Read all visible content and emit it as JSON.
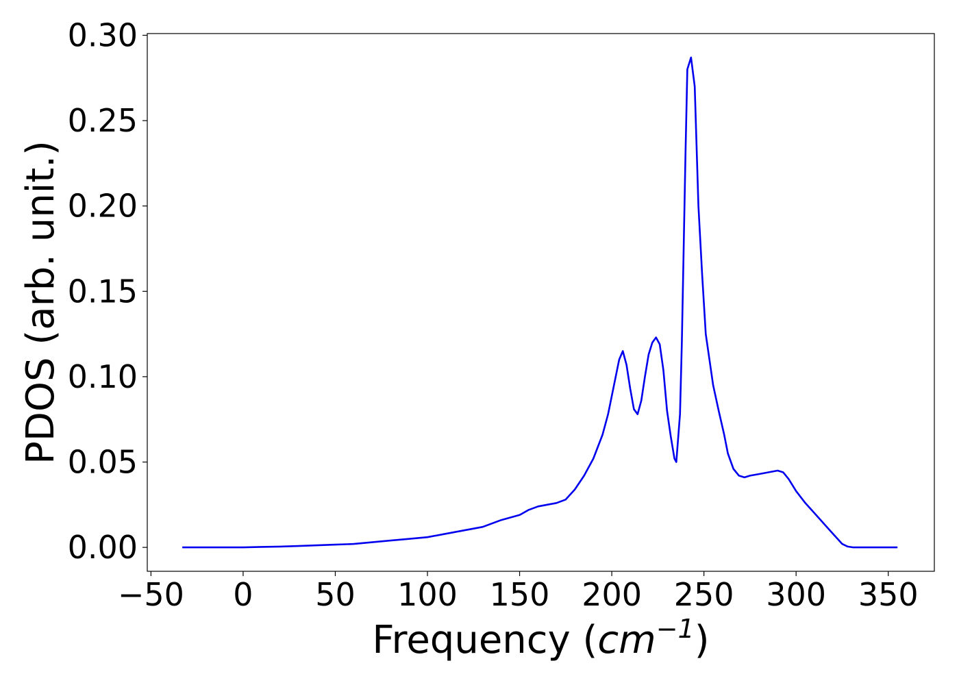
{
  "chart_data": {
    "type": "line",
    "title": "",
    "xlabel_prefix": "Frequency (",
    "xlabel_unit_base": "cm",
    "xlabel_unit_exponent": "−1",
    "xlabel_suffix": ")",
    "ylabel": "PDOS (arb. unit.)",
    "xlim": [
      -52,
      375
    ],
    "ylim": [
      -0.014,
      0.301
    ],
    "xticks": [
      -50,
      0,
      50,
      100,
      150,
      200,
      250,
      300,
      350
    ],
    "xtick_labels": [
      "−50",
      "0",
      "50",
      "100",
      "150",
      "200",
      "250",
      "300",
      "350"
    ],
    "yticks": [
      0.0,
      0.05,
      0.1,
      0.15,
      0.2,
      0.25,
      0.3
    ],
    "ytick_labels": [
      "0.00",
      "0.05",
      "0.10",
      "0.15",
      "0.20",
      "0.25",
      "0.30"
    ],
    "grid": false,
    "series": [
      {
        "color": "#0000ee",
        "x": [
          -33,
          0,
          10,
          20,
          30,
          40,
          50,
          60,
          70,
          80,
          90,
          100,
          110,
          120,
          130,
          140,
          150,
          155,
          160,
          165,
          170,
          175,
          180,
          185,
          190,
          195,
          198,
          201,
          204,
          206,
          208,
          210,
          212,
          214,
          216,
          218,
          220,
          222,
          224,
          226,
          228,
          230,
          232,
          234,
          235,
          237,
          238,
          240,
          241,
          243,
          245,
          247,
          249,
          251,
          253,
          255,
          258,
          261,
          263,
          266,
          269,
          272,
          275,
          280,
          285,
          290,
          293,
          296,
          300,
          305,
          310,
          315,
          320,
          325,
          328,
          331,
          335,
          340,
          350,
          355
        ],
        "y": [
          0.0,
          0.0,
          0.0003,
          0.0005,
          0.0008,
          0.0012,
          0.0016,
          0.002,
          0.003,
          0.004,
          0.005,
          0.006,
          0.008,
          0.01,
          0.012,
          0.016,
          0.019,
          0.022,
          0.024,
          0.025,
          0.026,
          0.028,
          0.034,
          0.042,
          0.052,
          0.066,
          0.078,
          0.094,
          0.11,
          0.115,
          0.107,
          0.093,
          0.081,
          0.078,
          0.086,
          0.1,
          0.113,
          0.12,
          0.123,
          0.119,
          0.104,
          0.08,
          0.065,
          0.052,
          0.05,
          0.078,
          0.12,
          0.23,
          0.28,
          0.287,
          0.27,
          0.2,
          0.16,
          0.125,
          0.11,
          0.095,
          0.08,
          0.066,
          0.055,
          0.046,
          0.042,
          0.041,
          0.042,
          0.043,
          0.044,
          0.045,
          0.044,
          0.04,
          0.033,
          0.026,
          0.02,
          0.014,
          0.008,
          0.002,
          0.0005,
          0.0,
          0.0,
          0.0,
          0.0,
          0.0
        ]
      }
    ]
  }
}
